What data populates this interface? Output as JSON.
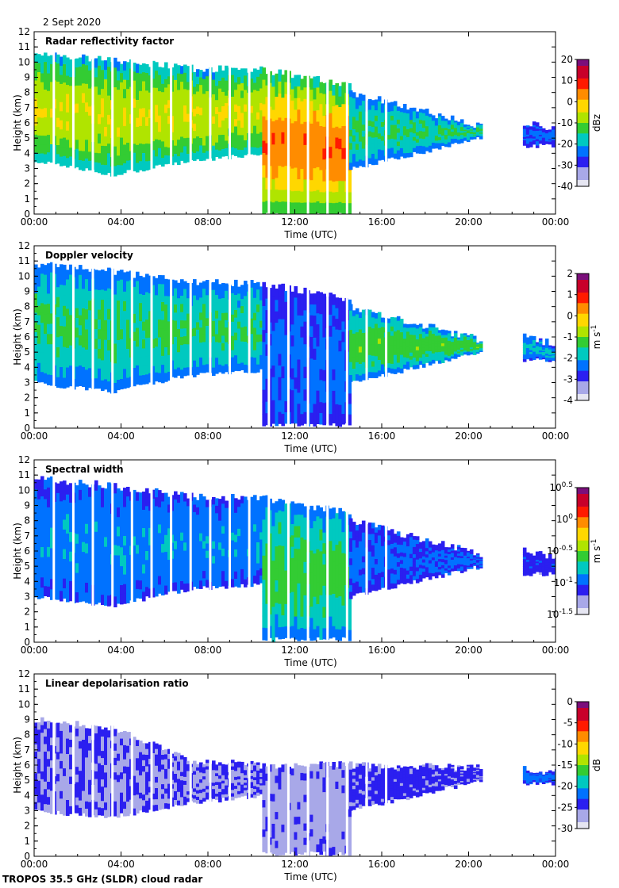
{
  "header": {
    "date": "2 Sept 2020"
  },
  "footer": {
    "instrument": "TROPOS 35.5 GHz (SLDR) cloud radar"
  },
  "colors": {
    "axis": "#000000",
    "background": "#ffffff",
    "gap_lines": "#ffffff"
  },
  "chart_data": [
    {
      "type": "heatmap",
      "title": "Radar reflectivity factor",
      "xlabel": "Time (UTC)",
      "ylabel": "Height (km)",
      "xticks": [
        "00:00",
        "04:00",
        "08:00",
        "12:00",
        "16:00",
        "20:00",
        "00:00"
      ],
      "xlim_hours": [
        0,
        24
      ],
      "ylim": [
        0,
        12
      ],
      "yticks": [
        "0",
        "1",
        "2",
        "3",
        "4",
        "5",
        "6",
        "7",
        "8",
        "9",
        "10",
        "11",
        "12"
      ],
      "colorbar": {
        "label": "dBz",
        "range": [
          -40,
          20
        ],
        "ticks": [
          "20",
          "10",
          "0",
          "-10",
          "-20",
          "-30",
          "-40"
        ]
      },
      "colormap": [
        "#7b0f7b",
        "#c8002a",
        "#ff1a00",
        "#ff8c00",
        "#ffd700",
        "#b0e400",
        "#33cc33",
        "#00c9c0",
        "#0072ff",
        "#2b1ff0",
        "#a8a8e8",
        "#e6e6f2"
      ],
      "cloud_regions": [
        {
          "start_h": 0.0,
          "end_h": 10.5,
          "top_km": [
            10.5,
            10.2,
            9.6,
            9.5
          ],
          "base_km": [
            3.5,
            2.6,
            3.5,
            4.0
          ],
          "core_value": -5
        },
        {
          "start_h": 10.5,
          "end_h": 14.5,
          "top_km": [
            9.5,
            8.5
          ],
          "base_km": [
            0.0,
            0.0
          ],
          "core_value": 5
        },
        {
          "start_h": 14.5,
          "end_h": 20.5,
          "top_km": [
            8.0,
            5.8
          ],
          "base_km": [
            3.0,
            5.0
          ],
          "core_value": -15
        },
        {
          "start_h": 22.5,
          "end_h": 24.0,
          "top_km": [
            6.0,
            5.5
          ],
          "base_km": [
            4.5,
            4.5
          ],
          "core_value": -25
        }
      ]
    },
    {
      "type": "heatmap",
      "title": "Doppler velocity",
      "xlabel": "Time (UTC)",
      "ylabel": "Height (km)",
      "xticks": [
        "00:00",
        "04:00",
        "08:00",
        "12:00",
        "16:00",
        "20:00",
        "00:00"
      ],
      "xlim_hours": [
        0,
        24
      ],
      "ylim": [
        0,
        12
      ],
      "yticks": [
        "0",
        "1",
        "2",
        "3",
        "4",
        "5",
        "6",
        "7",
        "8",
        "9",
        "10",
        "11",
        "12"
      ],
      "colorbar": {
        "label": "m s",
        "label_exponent": "-1",
        "range": [
          -4,
          2
        ],
        "ticks": [
          "2",
          "1",
          "0",
          "-1",
          "-2",
          "-3",
          "-4"
        ]
      },
      "colormap": [
        "#7b0f7b",
        "#c8002a",
        "#ff1a00",
        "#ff8c00",
        "#ffd700",
        "#b0e400",
        "#33cc33",
        "#00c9c0",
        "#0072ff",
        "#2b1ff0",
        "#a8a8e8",
        "#e6e6f2"
      ],
      "cloud_regions": [
        {
          "start_h": 0.0,
          "end_h": 10.5,
          "top_km": [
            10.8,
            10.3,
            9.6,
            9.5
          ],
          "base_km": [
            3.0,
            2.4,
            3.5,
            3.8
          ],
          "core_value": -1.5
        },
        {
          "start_h": 10.5,
          "end_h": 14.5,
          "top_km": [
            9.5,
            8.5
          ],
          "base_km": [
            0.2,
            0.2
          ],
          "core_value": -2.5
        },
        {
          "start_h": 14.5,
          "end_h": 20.5,
          "top_km": [
            8.0,
            5.8
          ],
          "base_km": [
            3.0,
            5.0
          ],
          "core_value": -1.2
        },
        {
          "start_h": 22.5,
          "end_h": 24.0,
          "top_km": [
            6.0,
            5.5
          ],
          "base_km": [
            4.5,
            4.5
          ],
          "core_value": -2.0
        }
      ]
    },
    {
      "type": "heatmap",
      "title": "Spectral width",
      "xlabel": "Time (UTC)",
      "ylabel": "Height (km)",
      "xticks": [
        "00:00",
        "04:00",
        "08:00",
        "12:00",
        "16:00",
        "20:00",
        "00:00"
      ],
      "xlim_hours": [
        0,
        24
      ],
      "ylim": [
        0,
        12
      ],
      "yticks": [
        "0",
        "1",
        "2",
        "3",
        "4",
        "5",
        "6",
        "7",
        "8",
        "9",
        "10",
        "11",
        "12"
      ],
      "colorbar": {
        "label": "m s",
        "label_exponent": "-1",
        "scale": "log",
        "range": [
          -1.5,
          0.5
        ],
        "ticks": [
          {
            "base": "10",
            "exp": "0.5"
          },
          {
            "base": "10",
            "exp": "0"
          },
          {
            "base": "10",
            "exp": "-0.5"
          },
          {
            "base": "10",
            "exp": "-1"
          },
          {
            "base": "10",
            "exp": "-1.5"
          }
        ]
      },
      "colormap": [
        "#7b0f7b",
        "#c8002a",
        "#ff1a00",
        "#ff8c00",
        "#ffd700",
        "#b0e400",
        "#33cc33",
        "#00c9c0",
        "#0072ff",
        "#2b1ff0",
        "#a8a8e8",
        "#e6e6f2"
      ],
      "cloud_regions": [
        {
          "start_h": 0.0,
          "end_h": 10.5,
          "top_km": [
            10.8,
            10.3,
            9.6,
            9.5
          ],
          "base_km": [
            3.0,
            2.4,
            3.5,
            3.8
          ],
          "core_value": -0.9
        },
        {
          "start_h": 10.5,
          "end_h": 14.5,
          "top_km": [
            9.5,
            8.5
          ],
          "base_km": [
            0.2,
            0.2
          ],
          "core_value": -0.6
        },
        {
          "start_h": 14.5,
          "end_h": 20.5,
          "top_km": [
            8.0,
            5.8
          ],
          "base_km": [
            3.0,
            5.0
          ],
          "core_value": -1.0
        },
        {
          "start_h": 22.5,
          "end_h": 24.0,
          "top_km": [
            6.0,
            5.5
          ],
          "base_km": [
            4.5,
            4.5
          ],
          "core_value": -1.1
        }
      ]
    },
    {
      "type": "heatmap",
      "title": "Linear depolarisation ratio",
      "xlabel": "Time (UTC)",
      "ylabel": "Height (km)",
      "xticks": [
        "00:00",
        "04:00",
        "08:00",
        "12:00",
        "16:00",
        "20:00",
        "00:00"
      ],
      "xlim_hours": [
        0,
        24
      ],
      "ylim": [
        0,
        12
      ],
      "yticks": [
        "0",
        "1",
        "2",
        "3",
        "4",
        "5",
        "6",
        "7",
        "8",
        "9",
        "10",
        "11",
        "12"
      ],
      "colorbar": {
        "label": "dB",
        "range": [
          -30,
          0
        ],
        "ticks": [
          "0",
          "-5",
          "-10",
          "-15",
          "-20",
          "-25",
          "-30"
        ]
      },
      "colormap": [
        "#7b0f7b",
        "#c8002a",
        "#ff1a00",
        "#ff8c00",
        "#ffd700",
        "#b0e400",
        "#33cc33",
        "#00c9c0",
        "#0072ff",
        "#2b1ff0",
        "#a8a8e8",
        "#e6e6f2"
      ],
      "cloud_regions": [
        {
          "start_h": 0.0,
          "end_h": 10.5,
          "top_km": [
            9.0,
            8.5,
            6.3,
            6.0
          ],
          "base_km": [
            3.0,
            2.6,
            3.5,
            4.0
          ],
          "core_value": -26
        },
        {
          "start_h": 10.5,
          "end_h": 14.5,
          "top_km": [
            6.0,
            6.0
          ],
          "base_km": [
            0.2,
            0.2
          ],
          "core_value": -27
        },
        {
          "start_h": 14.5,
          "end_h": 20.5,
          "top_km": [
            6.0,
            5.8
          ],
          "base_km": [
            3.0,
            5.0
          ],
          "core_value": -25
        },
        {
          "start_h": 22.5,
          "end_h": 24.0,
          "top_km": [
            5.8,
            5.5
          ],
          "base_km": [
            4.8,
            4.8
          ],
          "core_value": -22
        }
      ]
    }
  ]
}
